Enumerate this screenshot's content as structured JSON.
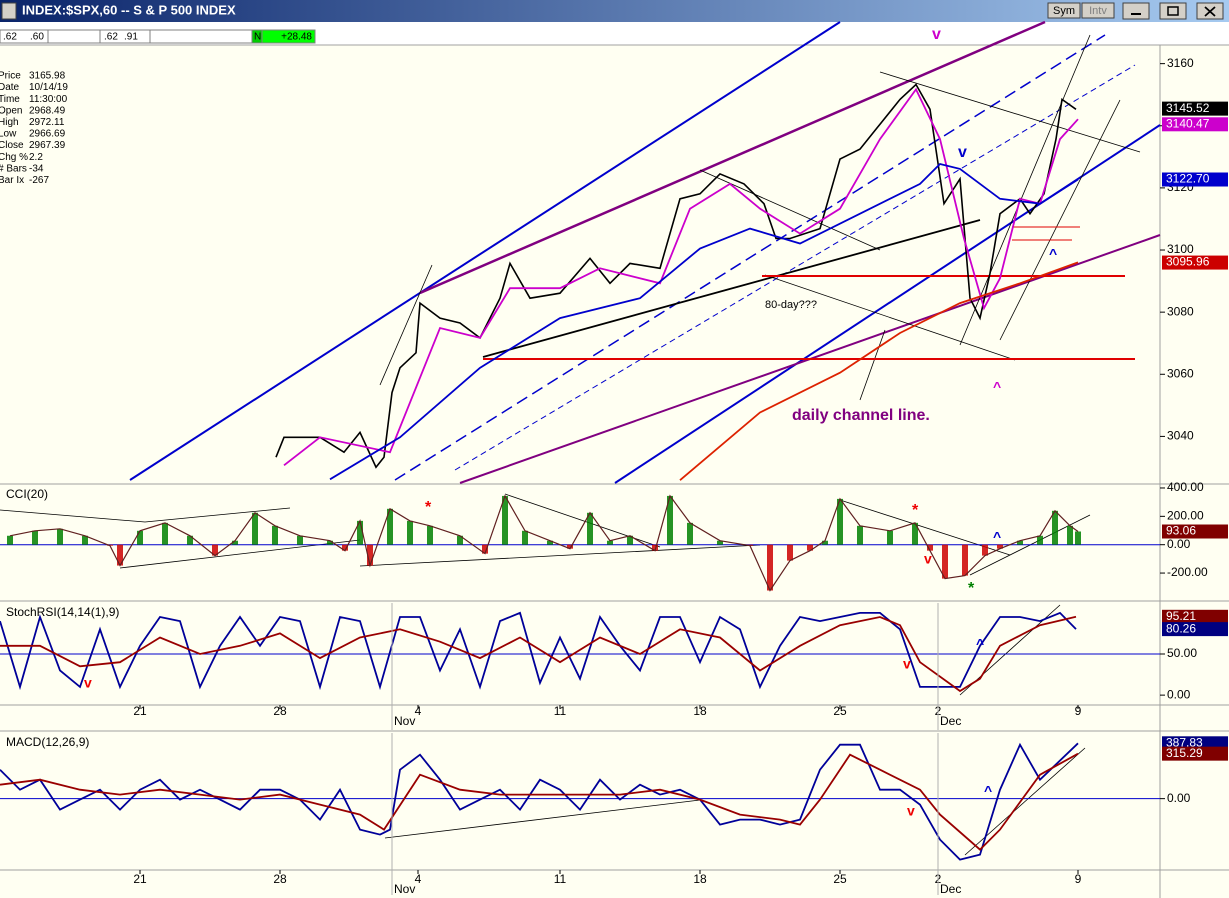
{
  "window": {
    "title": "INDEX:$SPX,60 -- S & P 500 INDEX",
    "buttons": [
      "Sym",
      "Intv"
    ]
  },
  "toolbar": [
    ".62",
    ".60",
    ".62",
    ".91",
    "N",
    "+28.48"
  ],
  "info": [
    {
      "label": "Price",
      "value": "3165.98"
    },
    {
      "label": "Date",
      "value": "10/14/19"
    },
    {
      "label": "Time",
      "value": "11:30:00"
    },
    {
      "label": "Open",
      "value": "2968.49"
    },
    {
      "label": "High",
      "value": "2972.11"
    },
    {
      "label": "Low",
      "value": "2966.69"
    },
    {
      "label": "Close",
      "value": "2967.39"
    },
    {
      "label": "Chg %",
      "value": "2.2"
    },
    {
      "label": "# Bars",
      "value": "-34"
    },
    {
      "label": "Bar Ix",
      "value": "-267"
    }
  ],
  "chart_data": [
    {
      "type": "line",
      "xlim": [
        0,
        290
      ],
      "ylim": [
        3025,
        3166
      ],
      "yticks": [
        3040,
        3060,
        3080,
        3100,
        3120,
        3140,
        3160
      ],
      "series": [
        {
          "color": "#000000",
          "x": [
            69,
            71,
            80,
            86,
            90,
            94,
            96,
            98,
            100,
            104,
            105,
            110,
            115,
            120,
            125,
            127.5,
            132.5,
            140,
            147.5,
            152.5,
            157.5,
            165,
            170,
            175,
            180,
            186,
            191,
            194,
            197.5,
            205,
            210,
            215,
            220,
            225,
            229,
            232.5,
            236,
            240,
            242.5,
            245,
            247.5,
            250,
            255,
            257.5,
            261,
            264,
            265.5,
            269
          ],
          "values": [
            3033.3,
            3039.7,
            3039.7,
            3034.9,
            3041.3,
            3030.1,
            3033.3,
            3054.1,
            3062.1,
            3066.9,
            3082.9,
            3078.1,
            3076.5,
            3071.7,
            3084.5,
            3095.7,
            3084.5,
            3086.1,
            3097.3,
            3089.3,
            3095.7,
            3094.1,
            3116.5,
            3118.1,
            3124.5,
            3121.3,
            3114.9,
            3103.7,
            3103.7,
            3106.9,
            3129.3,
            3132.5,
            3140.5,
            3148.5,
            3153.3,
            3145.3,
            3114.9,
            3122.9,
            3084.5,
            3078.1,
            3092.5,
            3111.7,
            3116.5,
            3111.7,
            3118.1,
            3135.7,
            3148.5,
            3145.3
          ]
        },
        {
          "color": "#cc00cc",
          "x": [
            71,
            80,
            97.5,
            110,
            120,
            127.5,
            140,
            150,
            165,
            172.5,
            182.5,
            190,
            200,
            210,
            220,
            229,
            235,
            241,
            246,
            250,
            255,
            260,
            265,
            269.5
          ],
          "values": [
            3030.7,
            3039.7,
            3034.9,
            3074.9,
            3071.7,
            3087.7,
            3087.7,
            3094.1,
            3089.3,
            3113.3,
            3121.3,
            3113.3,
            3105.3,
            3113.3,
            3135.7,
            3151.7,
            3135.7,
            3103.7,
            3081.3,
            3090.9,
            3116.5,
            3114.9,
            3135.7,
            3142.1
          ]
        },
        {
          "color": "#0000cc",
          "x": [
            82.5,
            100,
            120,
            140,
            160,
            175,
            187.5,
            200,
            215,
            230,
            235,
            240,
            250,
            260,
            269.5
          ],
          "values": [
            3026.2,
            3039.7,
            3062.1,
            3078.1,
            3084.5,
            3100.5,
            3106.9,
            3102.1,
            3111.7,
            3121.3,
            3127.7,
            3126.1,
            3116.5,
            3114.9,
            3122.7
          ]
        },
        {
          "color": "#dd2200",
          "x": [
            170,
            190,
            210,
            225,
            240,
            255,
            269.5
          ],
          "values": [
            3025.9,
            3047.7,
            3060.5,
            3073.3,
            3082.9,
            3089.3,
            3096
          ]
        }
      ],
      "tags": [
        {
          "value": 3145.52,
          "color": "#000000"
        },
        {
          "value": 3140.47,
          "color": "#cc00cc"
        },
        {
          "value": 3122.7,
          "label": "3122.70",
          "color": "#0000cc"
        },
        {
          "value": 3095.96,
          "color": "#cc0000"
        }
      ],
      "annotations": [
        {
          "text": "v",
          "color": "#cc00cc"
        },
        {
          "text": "v",
          "color": "#0000cc"
        },
        {
          "text": "^",
          "color": "#0000cc"
        },
        {
          "text": "^",
          "color": "#cc00cc"
        },
        {
          "text": "80-day???",
          "color": "#000000"
        },
        {
          "text": "daily channel line.",
          "color": "#800080"
        }
      ]
    },
    {
      "type": "bar",
      "title": "CCI(20)",
      "xlim": [
        0,
        290
      ],
      "ylim": [
        -390,
        421
      ],
      "yticks": [
        {
          "value": 400,
          "label": "400.00"
        },
        {
          "value": 200,
          "label": "200.00"
        },
        {
          "value": 0,
          "label": "0.00"
        },
        {
          "value": -200,
          "label": "-200.00"
        }
      ],
      "reference_line": 0,
      "reference_color": "#0000cc",
      "positive_color": "#008000",
      "negative_color": "#cc0000",
      "outline_color": "#602020",
      "series": [
        {
          "x": [
            2.5,
            8.75,
            15,
            21.25,
            27.5,
            30,
            35,
            41.25,
            47.5,
            53.75,
            58.75,
            63.75,
            68.75,
            75,
            82.5,
            86.25,
            90,
            92.5,
            97.5,
            102.5,
            107.5,
            115,
            121.25,
            126.25,
            131.25,
            137.5,
            142.5,
            147.5,
            152.5,
            157.5,
            163.75,
            167.5,
            172.5,
            180,
            187.5,
            192.5,
            197.5,
            202.5,
            206.25,
            210,
            215,
            222.5,
            228.75,
            232.5,
            236.25,
            241.25,
            246.25,
            250,
            255,
            260,
            263.75,
            267.5,
            269.5
          ],
          "values": [
            63,
            98,
            112,
            63,
            -7,
            -147,
            98,
            154,
            63,
            -77,
            28,
            225,
            133,
            63,
            28,
            -42,
            168,
            -147,
            253,
            168,
            133,
            63,
            -63,
            344,
            98,
            28,
            -28,
            225,
            28,
            63,
            -42,
            344,
            154,
            28,
            -7,
            -323,
            -112,
            -42,
            28,
            323,
            133,
            98,
            154,
            -42,
            -239,
            -218,
            -77,
            -28,
            28,
            63,
            239,
            133,
            93.06
          ]
        }
      ],
      "tags": [
        {
          "value": 93.06,
          "color": "#800000"
        }
      ],
      "annotations": [
        {
          "text": "*",
          "color": "#ee0000"
        },
        {
          "text": "*",
          "color": "#ee0000"
        },
        {
          "text": "v",
          "color": "#ee0000"
        },
        {
          "text": "^",
          "color": "#0000cc"
        },
        {
          "text": "*",
          "color": "#008000"
        }
      ]
    },
    {
      "type": "line",
      "title": "StochRSI(14,14(1),9)",
      "xlim": [
        0,
        290
      ],
      "ylim": [
        -12,
        112
      ],
      "yticks": [
        {
          "value": 50,
          "label": "50.00"
        },
        {
          "value": 0,
          "label": "0.00"
        }
      ],
      "reference_line": 50,
      "reference_color": "#0000cc",
      "xticks": [
        {
          "value": 35,
          "label": "21"
        },
        {
          "value": 70,
          "label": "28"
        },
        {
          "value": 104.5,
          "label": "4"
        },
        {
          "value": 140,
          "label": "11"
        },
        {
          "value": 175,
          "label": "18"
        },
        {
          "value": 210,
          "label": "25"
        },
        {
          "value": 234.5,
          "label": "2"
        },
        {
          "value": 269.5,
          "label": "9"
        }
      ],
      "months": [
        {
          "value": 98,
          "label": "Nov"
        },
        {
          "value": 234.5,
          "label": "Dec"
        }
      ],
      "series": [
        {
          "color": "#000099",
          "x": [
            0,
            5,
            10,
            15,
            20,
            25,
            30,
            35,
            40,
            45,
            50,
            55,
            60,
            65,
            70,
            75,
            80,
            85,
            90,
            95,
            100,
            105,
            110,
            115,
            120,
            125,
            130,
            135,
            140,
            145,
            150,
            155,
            160,
            165,
            170,
            175,
            180,
            185,
            190,
            195,
            200,
            205,
            210,
            215,
            220,
            225,
            230,
            235,
            240,
            245,
            250,
            255,
            260,
            265,
            269
          ],
          "values": [
            90,
            10,
            95,
            30,
            10,
            80,
            10,
            60,
            95,
            90,
            10,
            60,
            95,
            60,
            95,
            90,
            10,
            95,
            90,
            10,
            95,
            95,
            30,
            80,
            10,
            90,
            100,
            15,
            70,
            20,
            95,
            60,
            30,
            95,
            95,
            40,
            95,
            80,
            10,
            60,
            95,
            90,
            95,
            100,
            100,
            80,
            10,
            10,
            10,
            60,
            95,
            95,
            90,
            100,
            80.26
          ]
        },
        {
          "color": "#990000",
          "x": [
            0,
            10,
            20,
            30,
            40,
            50,
            60,
            70,
            80,
            90,
            100,
            110,
            120,
            130,
            140,
            150,
            160,
            170,
            180,
            190,
            200,
            210,
            220,
            225,
            230,
            240,
            245,
            250,
            260,
            269
          ],
          "values": [
            60,
            60,
            35,
            40,
            70,
            50,
            60,
            75,
            45,
            70,
            80,
            65,
            45,
            70,
            40,
            70,
            50,
            80,
            70,
            30,
            60,
            85,
            95,
            85,
            40,
            5,
            20,
            60,
            85,
            95.21
          ]
        }
      ],
      "tags": [
        {
          "value": 95.21,
          "color": "#800000"
        },
        {
          "value": 80.26,
          "color": "#000080"
        }
      ],
      "annotations": [
        {
          "text": "v",
          "color": "#ee0000"
        },
        {
          "text": "v",
          "color": "#ee0000"
        },
        {
          "text": "^",
          "color": "#0000cc"
        }
      ]
    },
    {
      "type": "line",
      "title": "MACD(12,26,9)",
      "xlim": [
        0,
        290
      ],
      "ylim": [
        -500,
        460
      ],
      "yticks": [
        {
          "value": 0,
          "label": "0.00"
        }
      ],
      "reference_line": 0,
      "reference_color": "#0000cc",
      "xticks": [
        {
          "value": 35,
          "label": "21"
        },
        {
          "value": 70,
          "label": "28"
        },
        {
          "value": 104.5,
          "label": "4"
        },
        {
          "value": 140,
          "label": "11"
        },
        {
          "value": 175,
          "label": "18"
        },
        {
          "value": 210,
          "label": "25"
        },
        {
          "value": 234.5,
          "label": "2"
        },
        {
          "value": 269.5,
          "label": "9"
        }
      ],
      "months": [
        {
          "value": 98,
          "label": "Nov"
        },
        {
          "value": 234.5,
          "label": "Dec"
        }
      ],
      "series": [
        {
          "color": "#000099",
          "x": [
            0,
            5,
            10,
            15,
            20,
            25,
            30,
            35,
            40,
            45,
            50,
            55,
            60,
            65,
            70,
            75,
            80,
            85,
            90,
            95,
            97.5,
            100,
            105,
            110,
            115,
            120,
            125,
            130,
            135,
            140,
            145,
            150,
            155,
            160,
            165,
            170,
            175,
            180,
            185,
            190,
            195,
            200,
            205,
            210,
            215,
            220,
            225,
            230,
            235,
            240,
            245,
            250,
            255,
            260,
            269.5
          ],
          "values": [
            203,
            63,
            133,
            -77,
            -7,
            63,
            -77,
            63,
            133,
            -7,
            63,
            -7,
            -77,
            63,
            63,
            -7,
            -147,
            63,
            -217,
            -252,
            -217,
            203,
            308,
            133,
            -77,
            -7,
            63,
            -77,
            133,
            63,
            -77,
            133,
            -7,
            98,
            28,
            63,
            -7,
            -182,
            -147,
            -147,
            -182,
            -147,
            203,
            378,
            378,
            63,
            63,
            -42,
            -287,
            -427,
            -392,
            63,
            378,
            133,
            387.83
          ]
        },
        {
          "color": "#990000",
          "x": [
            0,
            10,
            20,
            30,
            40,
            50,
            60,
            70,
            80,
            90,
            96,
            105,
            115,
            125,
            135,
            145,
            155,
            165,
            175,
            185,
            195,
            200,
            205,
            212.5,
            220,
            230,
            235,
            245,
            250,
            260,
            269.5
          ],
          "values": [
            98,
            133,
            63,
            28,
            63,
            28,
            -7,
            28,
            -42,
            -112,
            -217,
            168,
            63,
            28,
            28,
            28,
            28,
            63,
            -7,
            -112,
            -147,
            -182,
            -7,
            308,
            203,
            63,
            -112,
            -357,
            -217,
            168,
            315.29
          ]
        }
      ],
      "tags": [
        {
          "value": 387.83,
          "color": "#000080"
        },
        {
          "value": 315.29,
          "color": "#800000"
        }
      ],
      "annotations": [
        {
          "text": "v",
          "color": "#ee0000"
        },
        {
          "text": "^",
          "color": "#0000cc"
        }
      ]
    }
  ]
}
